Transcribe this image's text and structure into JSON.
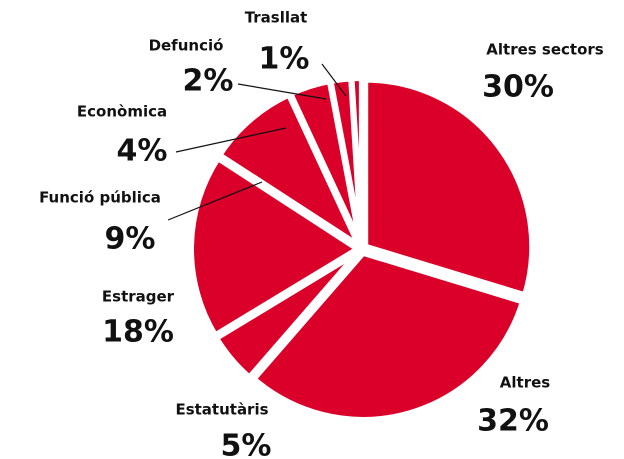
{
  "chart_data": {
    "type": "pie",
    "categories": [
      "Altres sectors",
      "Altres",
      "Estatutàris",
      "Estrager",
      "Funció  pública",
      "Econòmica",
      "Defunció",
      "Trasllat"
    ],
    "values": [
      30,
      32,
      5,
      18,
      9,
      4,
      2,
      1
    ],
    "value_labels": [
      "30%",
      "32%",
      "5%",
      "18%",
      "9%",
      "4%",
      "2%",
      "1%"
    ],
    "color": "#da0029"
  }
}
